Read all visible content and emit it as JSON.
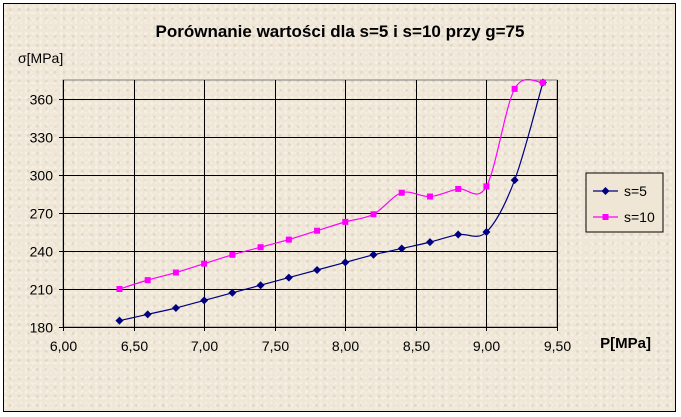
{
  "chart_data": {
    "type": "line",
    "title": "Porównanie wartości dla s=5 i s=10 przy g=75",
    "xlabel": "P[MPa]",
    "ylabel": "σ[MPa]",
    "xlim": [
      6.0,
      9.5
    ],
    "ylim": [
      180,
      370
    ],
    "x_ticks": [
      6.0,
      6.5,
      7.0,
      7.5,
      8.0,
      8.5,
      9.0,
      9.5
    ],
    "x_tick_labels": [
      "6,00",
      "6,50",
      "7,00",
      "7,50",
      "8,00",
      "8,50",
      "9,00",
      "9,50"
    ],
    "y_ticks": [
      180,
      210,
      240,
      270,
      300,
      330,
      360
    ],
    "y_tick_labels": [
      "180",
      "210",
      "240",
      "270",
      "300",
      "330",
      "360"
    ],
    "grid": true,
    "legend_position": "right",
    "series": [
      {
        "name": "s=5",
        "color": "#000080",
        "marker": "diamond",
        "x": [
          6.4,
          6.6,
          6.8,
          7.0,
          7.2,
          7.4,
          7.6,
          7.8,
          8.0,
          8.2,
          8.4,
          8.6,
          8.8,
          9.0,
          9.2,
          9.4
        ],
        "y": [
          185,
          190,
          195,
          201,
          207,
          213,
          219,
          225,
          231,
          237,
          242,
          247,
          253,
          255,
          296,
          373
        ]
      },
      {
        "name": "s=10",
        "color": "#ff00ff",
        "marker": "square",
        "x": [
          6.4,
          6.6,
          6.8,
          7.0,
          7.2,
          7.4,
          7.6,
          7.8,
          8.0,
          8.2,
          8.4,
          8.6,
          8.8,
          9.0,
          9.2,
          9.4
        ],
        "y": [
          210,
          217,
          223,
          230,
          237,
          243,
          249,
          256,
          263,
          269,
          286,
          283,
          289,
          291,
          368,
          373
        ]
      }
    ]
  }
}
